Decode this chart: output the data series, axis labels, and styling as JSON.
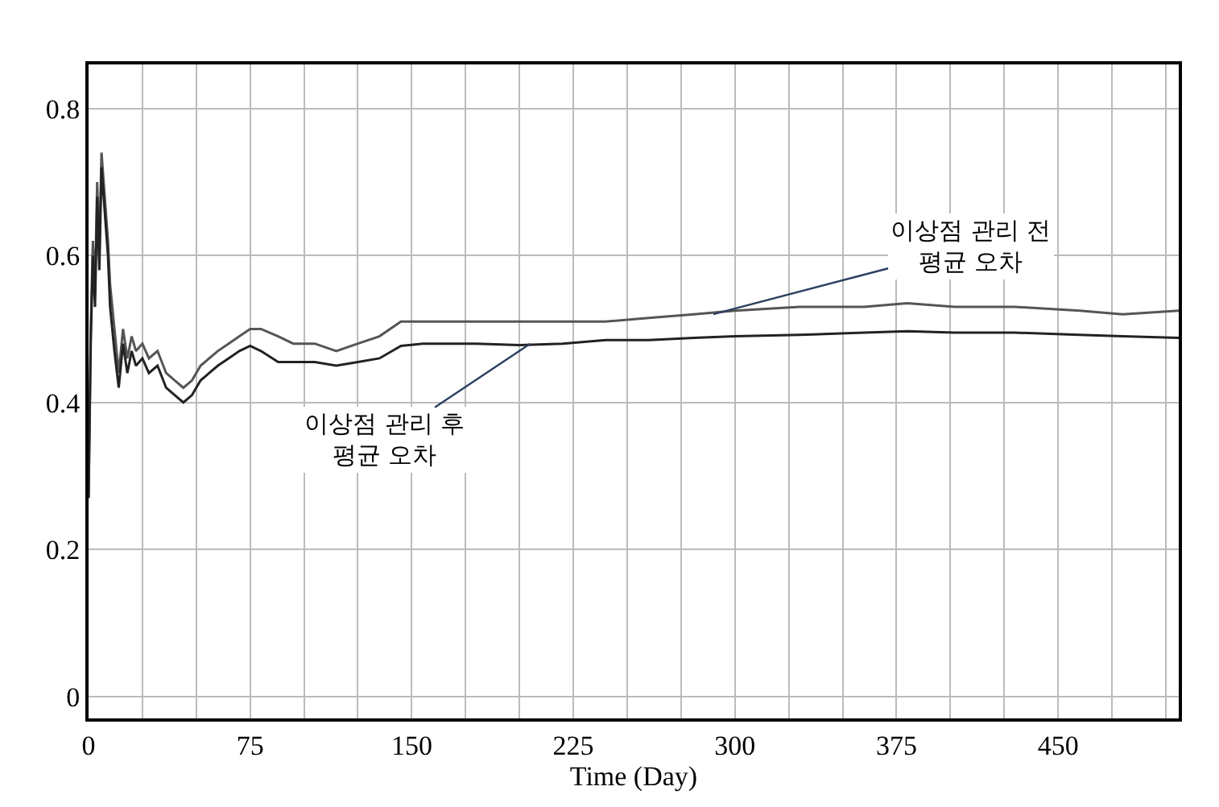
{
  "chart_data": {
    "type": "line",
    "xlabel": "Time (Day)",
    "x": [
      0,
      1,
      2,
      3,
      4,
      5,
      6,
      7,
      8,
      9,
      10,
      12,
      14,
      16,
      18,
      20,
      22,
      25,
      28,
      32,
      36,
      40,
      44,
      48,
      52,
      56,
      60,
      65,
      70,
      75,
      80,
      88,
      95,
      105,
      115,
      125,
      135,
      145,
      155,
      165,
      180,
      200,
      220,
      240,
      260,
      281,
      300,
      330,
      360,
      380,
      402,
      430,
      460,
      480,
      506
    ],
    "series": [
      {
        "name": null,
        "color": "#555555",
        "values": [
          0.27,
          0.5,
          0.62,
          0.55,
          0.7,
          0.6,
          0.74,
          0.7,
          0.66,
          0.62,
          0.56,
          0.5,
          0.44,
          0.5,
          0.46,
          0.49,
          0.47,
          0.48,
          0.46,
          0.47,
          0.44,
          0.43,
          0.42,
          0.43,
          0.45,
          0.46,
          0.47,
          0.48,
          0.49,
          0.5,
          0.5,
          0.49,
          0.48,
          0.48,
          0.47,
          0.48,
          0.49,
          0.51,
          0.51,
          0.51,
          0.51,
          0.51,
          0.51,
          0.51,
          0.515,
          0.52,
          0.525,
          0.53,
          0.53,
          0.535,
          0.53,
          0.53,
          0.525,
          0.52,
          0.525
        ]
      },
      {
        "name": null,
        "color": "#222222",
        "values": [
          0.27,
          0.48,
          0.6,
          0.53,
          0.68,
          0.58,
          0.72,
          0.68,
          0.64,
          0.6,
          0.53,
          0.47,
          0.42,
          0.48,
          0.44,
          0.47,
          0.45,
          0.46,
          0.44,
          0.45,
          0.42,
          0.41,
          0.4,
          0.41,
          0.43,
          0.44,
          0.45,
          0.46,
          0.47,
          0.477,
          0.47,
          0.455,
          0.455,
          0.455,
          0.45,
          0.455,
          0.46,
          0.477,
          0.48,
          0.48,
          0.48,
          0.478,
          0.48,
          0.485,
          0.485,
          0.488,
          0.49,
          0.492,
          0.495,
          0.497,
          0.495,
          0.495,
          0.492,
          0.49,
          0.488
        ]
      }
    ],
    "xlim": [
      0,
      506
    ],
    "xticks": [
      0,
      {
        "value": 25,
        "label": null
      },
      {
        "value": 50,
        "label": null
      },
      75,
      {
        "value": 100,
        "label": null
      },
      {
        "value": 125,
        "label": null
      },
      150,
      {
        "value": 175,
        "label": null
      },
      {
        "value": 200,
        "label": null
      },
      225,
      {
        "value": 250,
        "label": null
      },
      {
        "value": 275,
        "label": null
      },
      300,
      {
        "value": 325,
        "label": null
      },
      {
        "value": 350,
        "label": null
      },
      375,
      {
        "value": 400,
        "label": null
      },
      {
        "value": 425,
        "label": null
      },
      450,
      {
        "value": 475,
        "label": null
      },
      {
        "value": 500,
        "label": null
      }
    ],
    "ylim": [
      -0.03,
      0.86
    ],
    "yticks": [
      0,
      0.2,
      0.4,
      0.6,
      0.8
    ],
    "grid": true,
    "marker": "none",
    "line_style": "solid",
    "annotations": [
      {
        "text": "이상점 관리 전\n평균 오차",
        "x": 290,
        "y": 0.52
      },
      {
        "text": "이상점 관리 후\n평균 오차",
        "x": 205,
        "y": 0.48
      }
    ]
  }
}
